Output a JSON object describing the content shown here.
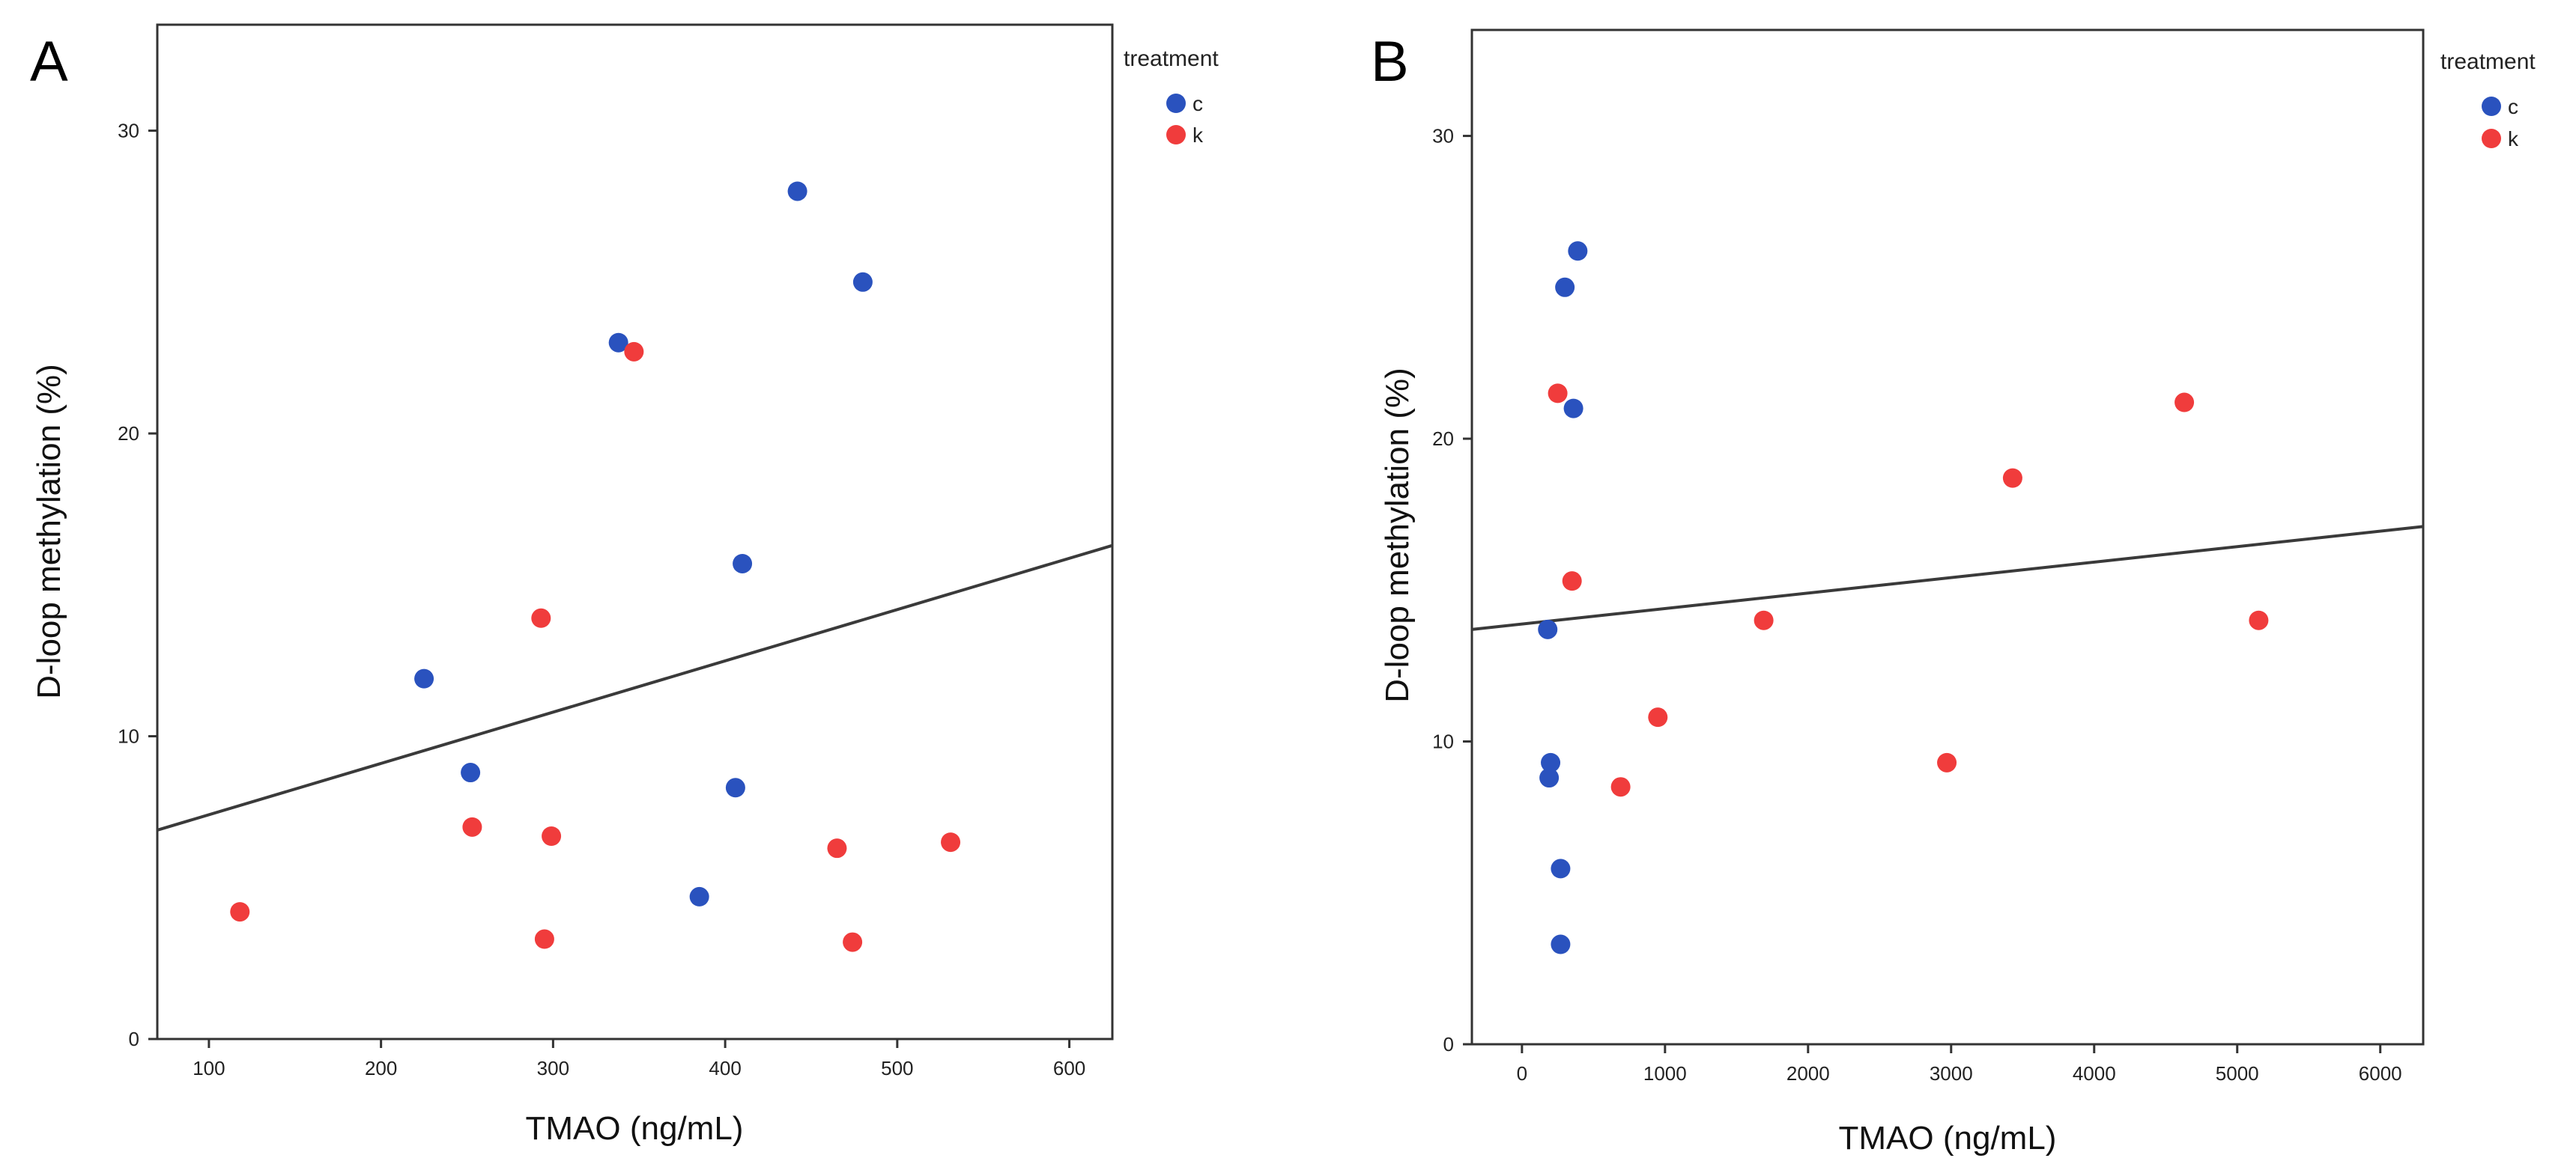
{
  "chart_data": [
    {
      "panel": "A",
      "type": "scatter",
      "xlabel": "TMAO (ng/mL)",
      "ylabel": "D-loop methylation (%)",
      "xlim": [
        70,
        625
      ],
      "ylim": [
        0,
        33.5
      ],
      "xticks": [
        100,
        200,
        300,
        400,
        500,
        600
      ],
      "yticks": [
        0,
        10,
        20,
        30
      ],
      "legend": {
        "title": "treatment",
        "position": "top-right-outside"
      },
      "series": [
        {
          "name": "c",
          "color": "#2a52be",
          "points": [
            [
              225,
              11.9
            ],
            [
              252,
              8.8
            ],
            [
              338,
              23.0
            ],
            [
              385,
              4.7
            ],
            [
              406,
              8.3
            ],
            [
              410,
              15.7
            ],
            [
              442,
              28.0
            ],
            [
              480,
              25.0
            ]
          ]
        },
        {
          "name": "k",
          "color": "#f03c3c",
          "points": [
            [
              118,
              4.2
            ],
            [
              253,
              7.0
            ],
            [
              293,
              13.9
            ],
            [
              295,
              3.3
            ],
            [
              299,
              6.7
            ],
            [
              347,
              22.7
            ],
            [
              465,
              6.3
            ],
            [
              474,
              3.2
            ],
            [
              531,
              6.5
            ]
          ]
        }
      ],
      "fit_line": {
        "x": [
          70,
          625
        ],
        "y": [
          6.9,
          16.3
        ]
      }
    },
    {
      "panel": "B",
      "type": "scatter",
      "xlabel": "TMAO (ng/mL)",
      "ylabel": "D-loop methylation (%)",
      "xlim": [
        -350,
        6300
      ],
      "ylim": [
        0,
        33.5
      ],
      "xticks": [
        0,
        1000,
        2000,
        3000,
        4000,
        5000,
        6000
      ],
      "yticks": [
        0,
        10,
        20,
        30
      ],
      "legend": {
        "title": "treatment",
        "position": "top-right-outside"
      },
      "series": [
        {
          "name": "c",
          "color": "#2a52be",
          "points": [
            [
              180,
              13.7
            ],
            [
              200,
              9.3
            ],
            [
              190,
              8.8
            ],
            [
              270,
              5.8
            ],
            [
              270,
              3.3
            ],
            [
              300,
              25.0
            ],
            [
              360,
              21.0
            ],
            [
              390,
              26.2
            ]
          ]
        },
        {
          "name": "k",
          "color": "#f03c3c",
          "points": [
            [
              250,
              21.5
            ],
            [
              350,
              15.3
            ],
            [
              690,
              8.5
            ],
            [
              950,
              10.8
            ],
            [
              1690,
              14.0
            ],
            [
              2970,
              9.3
            ],
            [
              3430,
              18.7
            ],
            [
              4630,
              21.2
            ],
            [
              5150,
              14.0
            ]
          ]
        }
      ],
      "fit_line": {
        "x": [
          -350,
          6300
        ],
        "y": [
          13.7,
          17.1
        ]
      }
    }
  ]
}
